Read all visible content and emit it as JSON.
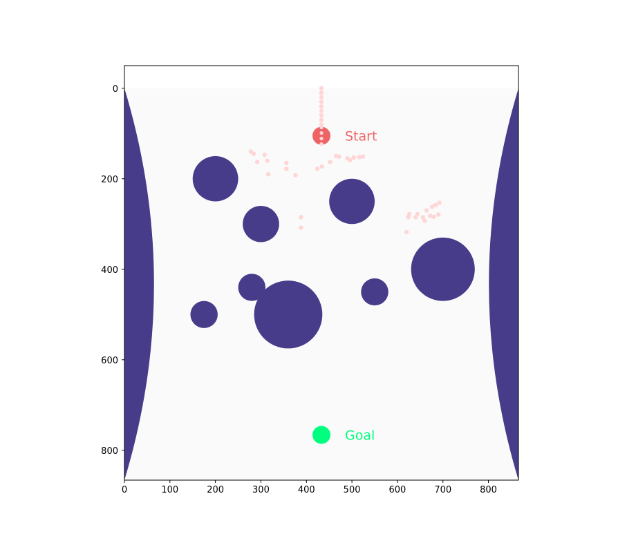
{
  "chart_data": {
    "type": "scatter",
    "xlim": [
      0,
      866
    ],
    "ylim": [
      866,
      -50
    ],
    "x_ticks": [
      0,
      100,
      200,
      300,
      400,
      500,
      600,
      700,
      800
    ],
    "y_ticks": [
      0,
      200,
      400,
      600,
      800
    ],
    "colors": {
      "obstacle": "#463c8a",
      "field": "#fafafa",
      "start": "#ee6466",
      "goal": "#00ff7f",
      "trail": "#ffd6d6"
    },
    "start": {
      "x": 433,
      "y": 105,
      "label": "Start"
    },
    "goal": {
      "x": 433,
      "y": 766,
      "label": "Goal"
    },
    "obstacles": [
      {
        "x": 200,
        "y": 200,
        "r": 50
      },
      {
        "x": 300,
        "y": 300,
        "r": 40
      },
      {
        "x": 500,
        "y": 250,
        "r": 50
      },
      {
        "x": 700,
        "y": 400,
        "r": 70
      },
      {
        "x": 280,
        "y": 440,
        "r": 30
      },
      {
        "x": 360,
        "y": 500,
        "r": 75
      },
      {
        "x": 550,
        "y": 450,
        "r": 30
      },
      {
        "x": 175,
        "y": 500,
        "r": 30
      }
    ],
    "trail": [
      [
        433,
        0
      ],
      [
        433,
        10
      ],
      [
        433,
        20
      ],
      [
        433,
        30
      ],
      [
        433,
        40
      ],
      [
        433,
        50
      ],
      [
        433,
        60
      ],
      [
        433,
        70
      ],
      [
        433,
        80
      ],
      [
        433,
        95
      ],
      [
        433,
        110
      ],
      [
        433,
        120
      ],
      [
        278,
        140
      ],
      [
        284,
        145
      ],
      [
        292,
        163
      ],
      [
        308,
        147
      ],
      [
        314,
        160
      ],
      [
        316,
        190
      ],
      [
        356,
        165
      ],
      [
        356,
        178
      ],
      [
        376,
        192
      ],
      [
        424,
        178
      ],
      [
        434,
        173
      ],
      [
        452,
        163
      ],
      [
        465,
        150
      ],
      [
        472,
        151
      ],
      [
        490,
        155
      ],
      [
        496,
        159
      ],
      [
        504,
        153
      ],
      [
        516,
        152
      ],
      [
        524,
        151
      ],
      [
        388,
        285
      ],
      [
        388,
        308
      ],
      [
        620,
        318
      ],
      [
        624,
        285
      ],
      [
        626,
        278
      ],
      [
        640,
        285
      ],
      [
        644,
        278
      ],
      [
        656,
        285
      ],
      [
        660,
        293
      ],
      [
        664,
        270
      ],
      [
        672,
        282
      ],
      [
        676,
        262
      ],
      [
        680,
        284
      ],
      [
        684,
        258
      ],
      [
        690,
        279
      ],
      [
        692,
        253
      ]
    ]
  }
}
